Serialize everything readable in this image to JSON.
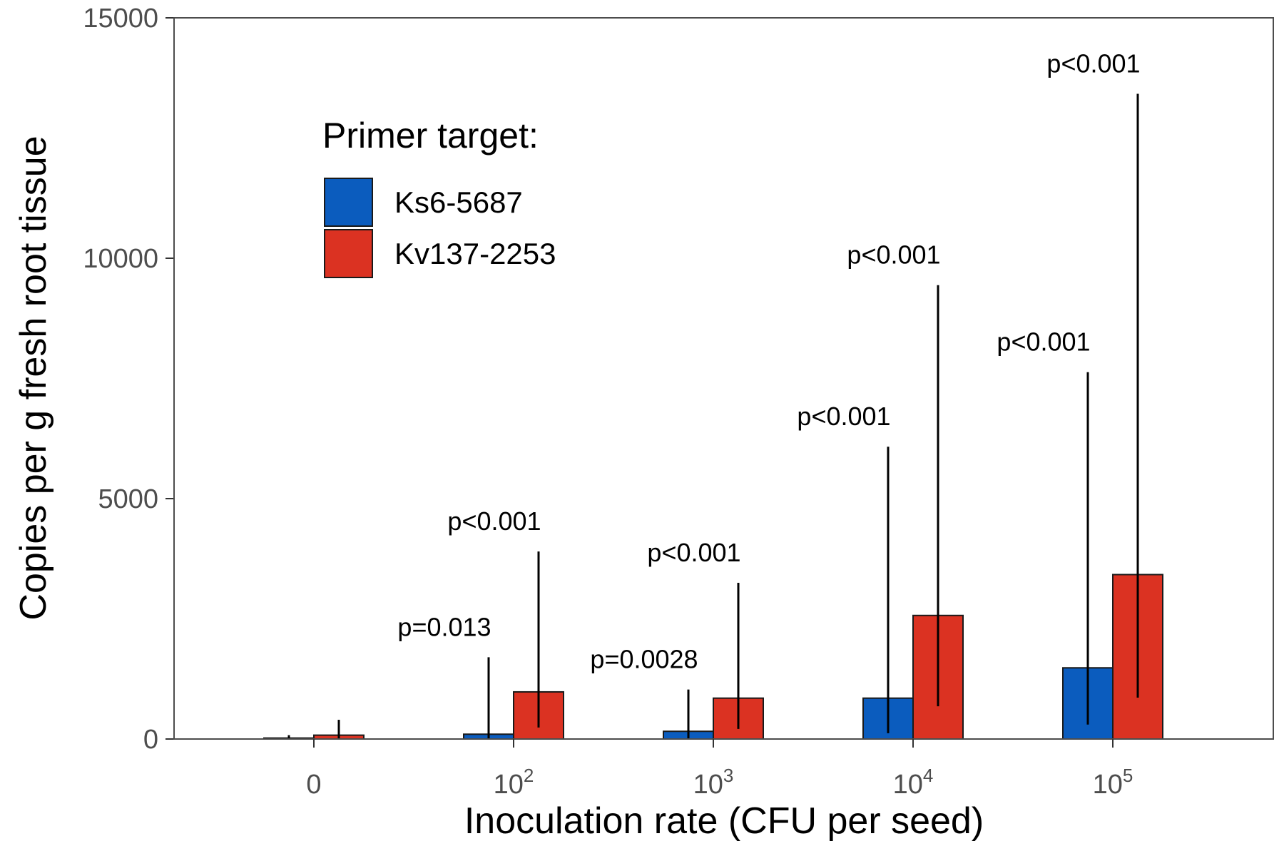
{
  "chart_data": {
    "type": "bar",
    "xlabel": "Inoculation rate (CFU per seed)",
    "ylabel": "Copies per g fresh root tissue",
    "ylim": [
      0,
      15000
    ],
    "yticks": [
      0,
      5000,
      10000,
      15000
    ],
    "grid": false,
    "legend_position": "top-left",
    "categories": [
      {
        "base": "0",
        "exp": ""
      },
      {
        "base": "10",
        "exp": "2"
      },
      {
        "base": "10",
        "exp": "3"
      },
      {
        "base": "10",
        "exp": "4"
      },
      {
        "base": "10",
        "exp": "5"
      }
    ],
    "legend": {
      "title": "Primer target:"
    },
    "series": [
      {
        "name": "Ks6-5687",
        "color": "#0b5cbe",
        "values": [
          20,
          100,
          160,
          850,
          1480
        ],
        "error_low": [
          0,
          0,
          0,
          120,
          300
        ],
        "error_high": [
          80,
          1700,
          1030,
          6080,
          7630
        ],
        "labels": [
          "",
          "p=0.013",
          "p=0.0028",
          "p<0.001",
          "p<0.001"
        ]
      },
      {
        "name": "Kv137-2253",
        "color": "#db3222",
        "values": [
          80,
          980,
          850,
          2570,
          3420
        ],
        "error_low": [
          0,
          240,
          210,
          680,
          860
        ],
        "error_high": [
          400,
          3900,
          3250,
          9440,
          13420
        ],
        "labels": [
          "",
          "p<0.001",
          "p<0.001",
          "p<0.001",
          "p<0.001"
        ]
      }
    ]
  }
}
